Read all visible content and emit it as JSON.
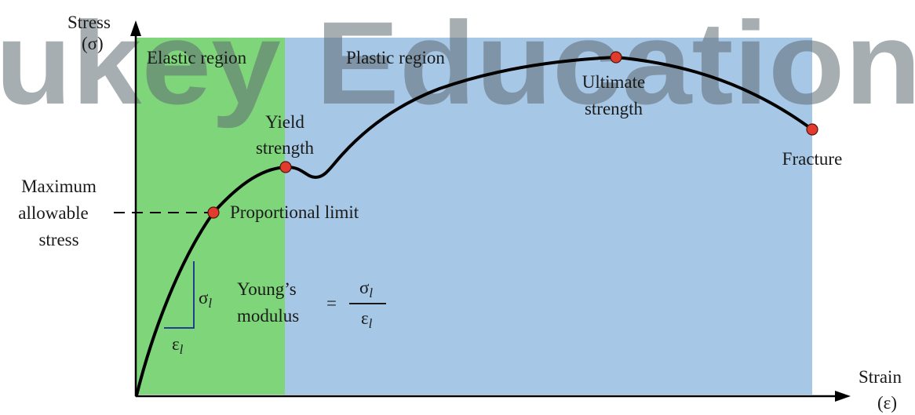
{
  "watermark": {
    "text": "ukey Education",
    "color": "#5f6b73"
  },
  "colors": {
    "elastic_region": "#7fd67a",
    "plastic_region": "#a6c8e6",
    "curve": "#000000",
    "point_fill": "#e23b2e",
    "triangle": "#1f3f8f"
  },
  "axes": {
    "y_label_line1": "Stress",
    "y_label_line2": "(σ)",
    "x_label_line1": "Strain",
    "x_label_line2": "(ε)"
  },
  "regions": {
    "elastic": "Elastic region",
    "plastic": "Plastic region"
  },
  "points": {
    "yield": {
      "line1": "Yield",
      "line2": "strength"
    },
    "ultimate": {
      "line1": "Ultimate",
      "line2": "strength"
    },
    "fracture": "Fracture",
    "proportional": "Proportional limit"
  },
  "max_allowable": {
    "line1": "Maximum",
    "line2": "allowable",
    "line3": "stress"
  },
  "modulus": {
    "line1": "Young’s",
    "line2": "modulus",
    "equals": "=",
    "numerator": "σ",
    "denominator": "ε",
    "subscript": "l"
  },
  "triangle": {
    "sigma": "σ",
    "epsilon": "ε",
    "subscript": "l"
  }
}
